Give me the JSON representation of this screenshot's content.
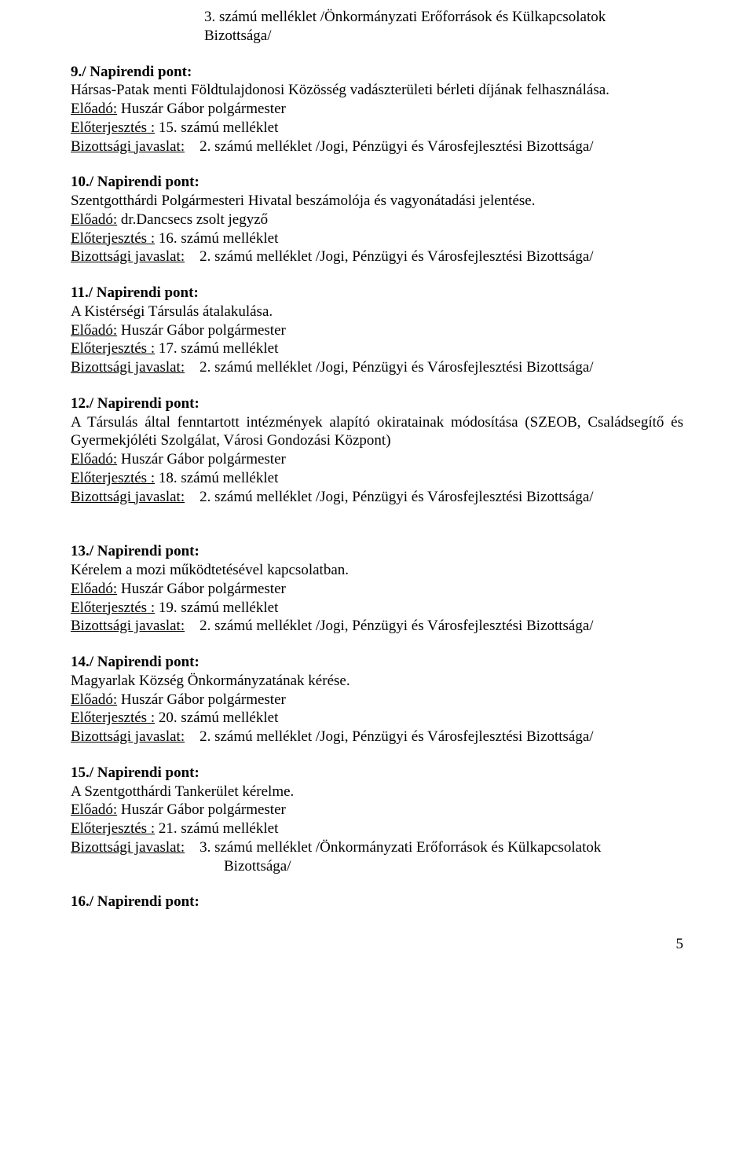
{
  "top": {
    "line1": "3. számú melléklet /Önkormányzati Erőforrások és Külkapcsolatok",
    "line2": "Bizottsága/"
  },
  "items": [
    {
      "heading": "9./ Napirendi pont:",
      "title": "Hársas-Patak menti Földtulajdonosi Közösség vadászterületi bérleti díjának felhasználása.",
      "pres_pre": " Előadó:",
      "pres": " Huszár Gábor polgármester",
      "att_u": "Előterjesztés :",
      "att": " 15. számú melléklet",
      "comm_u": "Bizottsági javaslat:",
      "comm": "    2. számú melléklet /Jogi, Pénzügyi és Városfejlesztési Bizottsága/"
    },
    {
      "heading": "10./ Napirendi pont:",
      "title": "Szentgotthárdi Polgármesteri Hivatal beszámolója és vagyonátadási jelentése.",
      "pres_pre": "Előadó:",
      "pres": " dr.Dancsecs zsolt jegyző",
      "att_u": "Előterjesztés :",
      "att": " 16. számú melléklet",
      "comm_u": "Bizottsági javaslat:",
      "comm": "    2. számú melléklet /Jogi, Pénzügyi és Városfejlesztési Bizottsága/"
    },
    {
      "heading": "11./ Napirendi pont:",
      "title": "A Kistérségi Társulás átalakulása.",
      "pres_pre": "Előadó:",
      "pres": " Huszár Gábor polgármester",
      "att_u": "Előterjesztés :",
      "att": " 17. számú melléklet",
      "comm_u": "Bizottsági javaslat:",
      "comm": "    2. számú melléklet /Jogi, Pénzügyi és Városfejlesztési Bizottsága/"
    },
    {
      "heading": "12./ Napirendi pont:",
      "title": "A Társulás által fenntartott intézmények alapító okiratainak módosítása (SZEOB, Családsegítő és Gyermekjóléti Szolgálat, Városi Gondozási Központ)",
      "pres_pre": "Előadó:",
      "pres": " Huszár Gábor polgármester",
      "att_u": "Előterjesztés :",
      "att": " 18. számú melléklet",
      "comm_u": "Bizottsági javaslat:",
      "comm": "    2. számú melléklet /Jogi, Pénzügyi és Városfejlesztési Bizottsága/",
      "justify": true,
      "extra_gap": true
    },
    {
      "heading": "13./ Napirendi pont:",
      "title": "Kérelem a mozi működtetésével kapcsolatban.",
      "pres_pre": "Előadó:",
      "pres": " Huszár Gábor polgármester",
      "att_u": "Előterjesztés :",
      "att": " 19. számú melléklet",
      "comm_u": "Bizottsági javaslat:",
      "comm": "    2. számú melléklet /Jogi, Pénzügyi és Városfejlesztési Bizottsága/"
    },
    {
      "heading": "14./ Napirendi pont:",
      "title": "Magyarlak Község Önkormányzatának kérése.",
      "pres_pre": "Előadó:",
      "pres": " Huszár Gábor polgármester",
      "att_u": "Előterjesztés :",
      "att": " 20. számú melléklet",
      "comm_u": "Bizottsági javaslat:",
      "comm": "    2. számú melléklet /Jogi, Pénzügyi és Városfejlesztési Bizottsága/"
    },
    {
      "heading": "15./ Napirendi pont:",
      "title": "A Szentgotthárdi Tankerület kérelme.",
      "pres_pre": "Előadó:",
      "pres": " Huszár Gábor polgármester",
      "att_u": "Előterjesztés :",
      "att": " 21. számú melléklet",
      "comm_u": "Bizottsági javaslat:",
      "comm": "    3. számú melléklet /Önkormányzati Erőforrások és Külkapcsolatok",
      "comm2": "Bizottsága/"
    }
  ],
  "last_heading": "16./ Napirendi pont:",
  "page_number": "5"
}
